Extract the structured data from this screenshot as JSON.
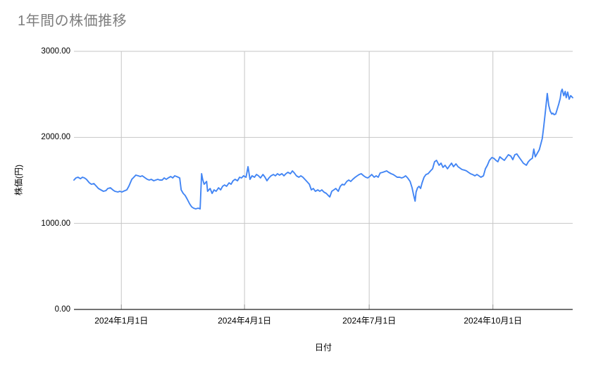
{
  "page": {
    "background": "#ffffff"
  },
  "chart_data": {
    "type": "line",
    "title": "1年間の株価推移",
    "xlabel": "日付",
    "ylabel": "株価(円)",
    "ylim": [
      0,
      3000
    ],
    "grid": true,
    "legend": "none",
    "line_color": "#4285f4",
    "grid_color": "#c6c6c6",
    "axis_color": "#222222",
    "tick_color": "#9a9a9a",
    "title_color": "#7d7d7d",
    "y_ticks": [
      {
        "label": "0.00",
        "value": 0
      },
      {
        "label": "1000.00",
        "value": 1000
      },
      {
        "label": "2000.00",
        "value": 2000
      },
      {
        "label": "3000.00",
        "value": 3000
      }
    ],
    "x_ticks": [
      {
        "label": "2024年1月1日",
        "t": 0.095
      },
      {
        "label": "2024年4月1日",
        "t": 0.342
      },
      {
        "label": "2024年7月1日",
        "t": 0.592
      },
      {
        "label": "2024年10月1日",
        "t": 0.84
      }
    ],
    "series": [
      {
        "name": "株価",
        "points": [
          [
            0.0,
            1504
          ],
          [
            0.004,
            1529
          ],
          [
            0.008,
            1537
          ],
          [
            0.013,
            1520
          ],
          [
            0.017,
            1537
          ],
          [
            0.021,
            1529
          ],
          [
            0.025,
            1512
          ],
          [
            0.031,
            1471
          ],
          [
            0.035,
            1455
          ],
          [
            0.04,
            1463
          ],
          [
            0.045,
            1431
          ],
          [
            0.049,
            1406
          ],
          [
            0.054,
            1390
          ],
          [
            0.059,
            1373
          ],
          [
            0.064,
            1381
          ],
          [
            0.068,
            1406
          ],
          [
            0.073,
            1414
          ],
          [
            0.078,
            1390
          ],
          [
            0.082,
            1373
          ],
          [
            0.088,
            1365
          ],
          [
            0.092,
            1373
          ],
          [
            0.096,
            1365
          ],
          [
            0.102,
            1381
          ],
          [
            0.106,
            1390
          ],
          [
            0.11,
            1431
          ],
          [
            0.116,
            1512
          ],
          [
            0.12,
            1537
          ],
          [
            0.124,
            1561
          ],
          [
            0.129,
            1553
          ],
          [
            0.133,
            1545
          ],
          [
            0.137,
            1553
          ],
          [
            0.143,
            1529
          ],
          [
            0.147,
            1512
          ],
          [
            0.151,
            1504
          ],
          [
            0.155,
            1512
          ],
          [
            0.16,
            1496
          ],
          [
            0.164,
            1504
          ],
          [
            0.168,
            1512
          ],
          [
            0.172,
            1504
          ],
          [
            0.177,
            1504
          ],
          [
            0.181,
            1529
          ],
          [
            0.185,
            1512
          ],
          [
            0.189,
            1529
          ],
          [
            0.194,
            1545
          ],
          [
            0.198,
            1529
          ],
          [
            0.202,
            1553
          ],
          [
            0.206,
            1545
          ],
          [
            0.212,
            1529
          ],
          [
            0.215,
            1390
          ],
          [
            0.219,
            1349
          ],
          [
            0.223,
            1324
          ],
          [
            0.227,
            1283
          ],
          [
            0.232,
            1226
          ],
          [
            0.236,
            1193
          ],
          [
            0.24,
            1177
          ],
          [
            0.244,
            1169
          ],
          [
            0.249,
            1177
          ],
          [
            0.253,
            1169
          ],
          [
            0.256,
            1578
          ],
          [
            0.258,
            1512
          ],
          [
            0.261,
            1455
          ],
          [
            0.266,
            1488
          ],
          [
            0.268,
            1373
          ],
          [
            0.273,
            1406
          ],
          [
            0.277,
            1349
          ],
          [
            0.281,
            1390
          ],
          [
            0.285,
            1373
          ],
          [
            0.29,
            1414
          ],
          [
            0.294,
            1390
          ],
          [
            0.298,
            1431
          ],
          [
            0.302,
            1447
          ],
          [
            0.306,
            1431
          ],
          [
            0.311,
            1471
          ],
          [
            0.315,
            1455
          ],
          [
            0.319,
            1496
          ],
          [
            0.323,
            1512
          ],
          [
            0.328,
            1496
          ],
          [
            0.332,
            1537
          ],
          [
            0.336,
            1529
          ],
          [
            0.34,
            1553
          ],
          [
            0.345,
            1537
          ],
          [
            0.349,
            1659
          ],
          [
            0.353,
            1512
          ],
          [
            0.357,
            1553
          ],
          [
            0.362,
            1537
          ],
          [
            0.366,
            1569
          ],
          [
            0.37,
            1553
          ],
          [
            0.374,
            1529
          ],
          [
            0.379,
            1569
          ],
          [
            0.383,
            1537
          ],
          [
            0.387,
            1496
          ],
          [
            0.391,
            1529
          ],
          [
            0.395,
            1553
          ],
          [
            0.4,
            1569
          ],
          [
            0.404,
            1553
          ],
          [
            0.408,
            1578
          ],
          [
            0.412,
            1561
          ],
          [
            0.417,
            1578
          ],
          [
            0.421,
            1553
          ],
          [
            0.425,
            1578
          ],
          [
            0.429,
            1594
          ],
          [
            0.434,
            1578
          ],
          [
            0.438,
            1610
          ],
          [
            0.442,
            1586
          ],
          [
            0.446,
            1553
          ],
          [
            0.451,
            1537
          ],
          [
            0.455,
            1553
          ],
          [
            0.459,
            1537
          ],
          [
            0.463,
            1512
          ],
          [
            0.467,
            1488
          ],
          [
            0.472,
            1455
          ],
          [
            0.476,
            1390
          ],
          [
            0.48,
            1406
          ],
          [
            0.484,
            1373
          ],
          [
            0.489,
            1390
          ],
          [
            0.493,
            1373
          ],
          [
            0.497,
            1390
          ],
          [
            0.501,
            1365
          ],
          [
            0.506,
            1349
          ],
          [
            0.51,
            1324
          ],
          [
            0.513,
            1308
          ],
          [
            0.517,
            1373
          ],
          [
            0.521,
            1390
          ],
          [
            0.525,
            1406
          ],
          [
            0.53,
            1373
          ],
          [
            0.534,
            1431
          ],
          [
            0.538,
            1455
          ],
          [
            0.542,
            1447
          ],
          [
            0.547,
            1488
          ],
          [
            0.551,
            1504
          ],
          [
            0.555,
            1488
          ],
          [
            0.559,
            1512
          ],
          [
            0.564,
            1537
          ],
          [
            0.568,
            1553
          ],
          [
            0.572,
            1569
          ],
          [
            0.576,
            1578
          ],
          [
            0.581,
            1553
          ],
          [
            0.585,
            1537
          ],
          [
            0.589,
            1529
          ],
          [
            0.593,
            1545
          ],
          [
            0.597,
            1569
          ],
          [
            0.602,
            1537
          ],
          [
            0.606,
            1553
          ],
          [
            0.61,
            1537
          ],
          [
            0.614,
            1586
          ],
          [
            0.619,
            1594
          ],
          [
            0.623,
            1602
          ],
          [
            0.627,
            1610
          ],
          [
            0.631,
            1594
          ],
          [
            0.636,
            1578
          ],
          [
            0.64,
            1569
          ],
          [
            0.644,
            1553
          ],
          [
            0.648,
            1537
          ],
          [
            0.653,
            1537
          ],
          [
            0.657,
            1529
          ],
          [
            0.661,
            1537
          ],
          [
            0.665,
            1553
          ],
          [
            0.669,
            1529
          ],
          [
            0.674,
            1488
          ],
          [
            0.678,
            1414
          ],
          [
            0.681,
            1332
          ],
          [
            0.684,
            1259
          ],
          [
            0.686,
            1365
          ],
          [
            0.689,
            1414
          ],
          [
            0.692,
            1431
          ],
          [
            0.695,
            1406
          ],
          [
            0.698,
            1471
          ],
          [
            0.702,
            1537
          ],
          [
            0.706,
            1569
          ],
          [
            0.71,
            1578
          ],
          [
            0.715,
            1610
          ],
          [
            0.719,
            1635
          ],
          [
            0.723,
            1717
          ],
          [
            0.727,
            1733
          ],
          [
            0.732,
            1676
          ],
          [
            0.736,
            1700
          ],
          [
            0.74,
            1651
          ],
          [
            0.744,
            1676
          ],
          [
            0.749,
            1635
          ],
          [
            0.753,
            1668
          ],
          [
            0.757,
            1700
          ],
          [
            0.761,
            1659
          ],
          [
            0.766,
            1692
          ],
          [
            0.77,
            1659
          ],
          [
            0.774,
            1643
          ],
          [
            0.778,
            1627
          ],
          [
            0.783,
            1619
          ],
          [
            0.787,
            1610
          ],
          [
            0.791,
            1594
          ],
          [
            0.795,
            1578
          ],
          [
            0.799,
            1569
          ],
          [
            0.804,
            1553
          ],
          [
            0.808,
            1569
          ],
          [
            0.812,
            1553
          ],
          [
            0.816,
            1537
          ],
          [
            0.821,
            1553
          ],
          [
            0.825,
            1635
          ],
          [
            0.829,
            1676
          ],
          [
            0.833,
            1733
          ],
          [
            0.838,
            1766
          ],
          [
            0.842,
            1757
          ],
          [
            0.846,
            1733
          ],
          [
            0.85,
            1717
          ],
          [
            0.854,
            1774
          ],
          [
            0.859,
            1749
          ],
          [
            0.863,
            1733
          ],
          [
            0.867,
            1766
          ],
          [
            0.871,
            1798
          ],
          [
            0.876,
            1782
          ],
          [
            0.88,
            1741
          ],
          [
            0.884,
            1798
          ],
          [
            0.888,
            1807
          ],
          [
            0.893,
            1766
          ],
          [
            0.897,
            1733
          ],
          [
            0.901,
            1700
          ],
          [
            0.907,
            1676
          ],
          [
            0.911,
            1717
          ],
          [
            0.915,
            1741
          ],
          [
            0.919,
            1757
          ],
          [
            0.922,
            1864
          ],
          [
            0.925,
            1774
          ],
          [
            0.929,
            1815
          ],
          [
            0.933,
            1856
          ],
          [
            0.936,
            1921
          ],
          [
            0.939,
            1986
          ],
          [
            0.942,
            2125
          ],
          [
            0.945,
            2289
          ],
          [
            0.948,
            2452
          ],
          [
            0.949,
            2510
          ],
          [
            0.952,
            2371
          ],
          [
            0.955,
            2305
          ],
          [
            0.958,
            2272
          ],
          [
            0.96,
            2281
          ],
          [
            0.963,
            2264
          ],
          [
            0.966,
            2272
          ],
          [
            0.969,
            2330
          ],
          [
            0.972,
            2387
          ],
          [
            0.975,
            2452
          ],
          [
            0.977,
            2534
          ],
          [
            0.979,
            2559
          ],
          [
            0.982,
            2485
          ],
          [
            0.985,
            2534
          ],
          [
            0.987,
            2461
          ],
          [
            0.99,
            2526
          ],
          [
            0.993,
            2444
          ],
          [
            0.996,
            2485
          ],
          [
            1.0,
            2461
          ]
        ]
      }
    ]
  }
}
